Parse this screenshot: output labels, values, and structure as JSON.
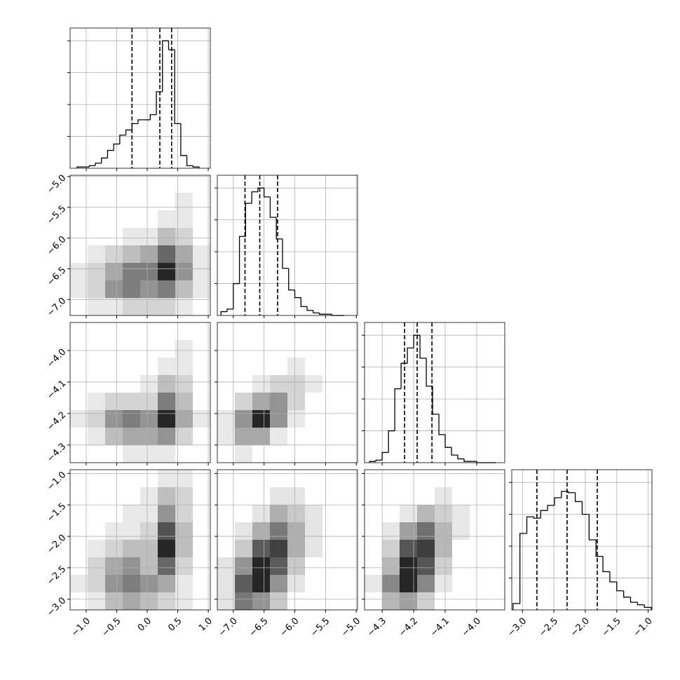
{
  "chart_data": {
    "type": "corner",
    "grid": true,
    "line_color": "#000000",
    "hist_ylim": [
      0,
      110
    ],
    "hist_yticks": [
      25,
      50,
      75,
      100
    ],
    "parameters": [
      {
        "lim": [
          -1.264,
          1.034
        ],
        "ticks": [
          {
            "value": -1.0,
            "label": "−1.0"
          },
          {
            "value": -0.5,
            "label": "−0.5"
          },
          {
            "value": 0.0,
            "label": "0.0"
          },
          {
            "value": 0.5,
            "label": "0.5"
          },
          {
            "value": 1.0,
            "label": "1.0"
          }
        ],
        "bins": [
          -1.15,
          -1.05,
          -0.95,
          -0.85,
          -0.75,
          -0.65,
          -0.55,
          -0.45,
          -0.35,
          -0.25,
          -0.15,
          -0.05,
          0.05,
          0.15,
          0.25,
          0.35,
          0.45,
          0.55,
          0.65,
          0.75,
          0.85
        ],
        "counts": [
          1,
          1,
          2,
          4,
          8,
          14,
          19,
          26,
          30,
          35,
          38,
          38,
          42,
          60,
          100,
          93,
          35,
          10,
          2,
          1
        ],
        "quantiles": [
          -0.25,
          0.207,
          0.4
        ]
      },
      {
        "lim": [
          -7.26,
          -4.98
        ],
        "ticks": [
          {
            "value": -7.0,
            "label": "−7.0"
          },
          {
            "value": -6.5,
            "label": "−6.5"
          },
          {
            "value": -6.0,
            "label": "−6.0"
          },
          {
            "value": -5.5,
            "label": "−5.5"
          },
          {
            "value": -5.0,
            "label": "−5.0"
          }
        ],
        "bins": [
          -7.2,
          -7.1,
          -7.0,
          -6.9,
          -6.8,
          -6.7,
          -6.6,
          -6.5,
          -6.4,
          -6.3,
          -6.2,
          -6.1,
          -6.0,
          -5.9,
          -5.8,
          -5.7,
          -5.6,
          -5.5,
          -5.4,
          -5.3,
          -5.2
        ],
        "counts": [
          3,
          5,
          25,
          62,
          88,
          97,
          100,
          93,
          77,
          60,
          37,
          20,
          14,
          7,
          4,
          2,
          1,
          1,
          0,
          0
        ],
        "quantiles": [
          -6.81,
          -6.57,
          -6.28
        ]
      },
      {
        "lim": [
          -4.356,
          -3.911
        ],
        "ticks": [
          {
            "value": -4.3,
            "label": "−4.3"
          },
          {
            "value": -4.2,
            "label": "−4.2"
          },
          {
            "value": -4.1,
            "label": "−4.1"
          },
          {
            "value": -4.0,
            "label": "−4.0"
          }
        ],
        "bins": [
          -4.34,
          -4.32,
          -4.3,
          -4.28,
          -4.26,
          -4.24,
          -4.22,
          -4.2,
          -4.18,
          -4.16,
          -4.14,
          -4.12,
          -4.1,
          -4.08,
          -4.06,
          -4.04,
          -4.02,
          -4.0,
          -3.98,
          -3.96,
          -3.94
        ],
        "counts": [
          1,
          2,
          8,
          25,
          58,
          78,
          90,
          100,
          82,
          60,
          38,
          22,
          12,
          6,
          3,
          1,
          1,
          0,
          0,
          0
        ],
        "quantiles": [
          -4.229,
          -4.189,
          -4.142
        ]
      },
      {
        "lim": [
          -3.17,
          -0.94
        ],
        "ticks": [
          {
            "value": -3.0,
            "label": "−3.0"
          },
          {
            "value": -2.5,
            "label": "−2.5"
          },
          {
            "value": -2.0,
            "label": "−2.0"
          },
          {
            "value": -1.5,
            "label": "−1.5"
          },
          {
            "value": -1.0,
            "label": "−1.0"
          }
        ],
        "bins": [
          -3.15,
          -3.04,
          -2.93,
          -2.82,
          -2.71,
          -2.6,
          -2.49,
          -2.38,
          -2.27,
          -2.16,
          -2.05,
          -1.94,
          -1.83,
          -1.72,
          -1.61,
          -1.5,
          -1.39,
          -1.28,
          -1.17,
          -1.06,
          -0.95
        ],
        "counts": [
          5,
          60,
          73,
          72,
          78,
          82,
          88,
          93,
          92,
          85,
          75,
          55,
          42,
          30,
          22,
          15,
          10,
          6,
          4,
          2
        ],
        "quantiles": [
          -2.77,
          -2.29,
          -1.81
        ]
      }
    ],
    "density": [
      [
        [
          0,
          0,
          0,
          0,
          0,
          0,
          0,
          0
        ],
        [
          0,
          0,
          0,
          0,
          0,
          0,
          1,
          0
        ],
        [
          0,
          0,
          0,
          0,
          0,
          1,
          1,
          0
        ],
        [
          0,
          0,
          0,
          1,
          1,
          3,
          2,
          0
        ],
        [
          0,
          1,
          2,
          3,
          4,
          7,
          4,
          1
        ],
        [
          1,
          2,
          4,
          6,
          6,
          10,
          5,
          1
        ],
        [
          1,
          2,
          5,
          6,
          5,
          6,
          3,
          1
        ],
        [
          0,
          1,
          1,
          2,
          2,
          2,
          1,
          0
        ]
      ],
      [
        [
          0,
          0,
          0,
          0,
          0,
          0,
          0,
          0
        ],
        [
          0,
          0,
          0,
          0,
          0,
          0,
          1,
          0
        ],
        [
          0,
          0,
          0,
          0,
          0,
          1,
          1,
          0
        ],
        [
          0,
          0,
          0,
          0,
          1,
          3,
          2,
          0
        ],
        [
          0,
          1,
          2,
          2,
          2,
          6,
          3,
          0
        ],
        [
          1,
          2,
          5,
          6,
          5,
          10,
          4,
          1
        ],
        [
          0,
          1,
          3,
          4,
          4,
          5,
          2,
          0
        ],
        [
          0,
          0,
          0,
          1,
          1,
          1,
          0,
          0
        ]
      ],
      [
        [
          0,
          0,
          0,
          0,
          0,
          0,
          0,
          0
        ],
        [
          0,
          0,
          0,
          0,
          0,
          0,
          0,
          0
        ],
        [
          0,
          0,
          0,
          0,
          1,
          0,
          0,
          0
        ],
        [
          0,
          0,
          1,
          2,
          2,
          1,
          0,
          0
        ],
        [
          0,
          2,
          4,
          5,
          2,
          0,
          0,
          0
        ],
        [
          1,
          5,
          10,
          5,
          1,
          0,
          0,
          0
        ],
        [
          1,
          4,
          4,
          1,
          0,
          0,
          0,
          0
        ],
        [
          0,
          1,
          0,
          0,
          0,
          0,
          0,
          0
        ]
      ],
      [
        [
          0,
          0,
          0,
          0,
          0,
          1,
          1,
          0
        ],
        [
          0,
          0,
          0,
          0,
          1,
          3,
          2,
          0
        ],
        [
          0,
          0,
          0,
          1,
          1,
          5,
          2,
          0
        ],
        [
          0,
          0,
          1,
          1,
          2,
          8,
          3,
          0
        ],
        [
          0,
          1,
          2,
          3,
          3,
          10,
          3,
          0
        ],
        [
          0,
          2,
          4,
          5,
          3,
          7,
          2,
          0
        ],
        [
          1,
          2,
          5,
          6,
          5,
          4,
          1,
          0
        ],
        [
          0,
          1,
          3,
          4,
          3,
          2,
          1,
          0
        ]
      ],
      [
        [
          0,
          0,
          0,
          0,
          0,
          0,
          0,
          0
        ],
        [
          0,
          0,
          0,
          1,
          1,
          0,
          0,
          0
        ],
        [
          0,
          0,
          1,
          3,
          2,
          1,
          0,
          0
        ],
        [
          0,
          1,
          3,
          5,
          3,
          1,
          0,
          0
        ],
        [
          0,
          2,
          6,
          7,
          3,
          1,
          0,
          0
        ],
        [
          1,
          4,
          8,
          6,
          2,
          0,
          0,
          0
        ],
        [
          1,
          6,
          8,
          4,
          1,
          0,
          0,
          0
        ],
        [
          1,
          5,
          4,
          2,
          0,
          0,
          0,
          0
        ]
      ],
      [
        [
          0,
          0,
          0,
          0,
          0,
          0,
          0,
          0
        ],
        [
          0,
          0,
          0,
          0,
          1,
          0,
          0,
          0
        ],
        [
          0,
          0,
          1,
          3,
          2,
          1,
          0,
          0
        ],
        [
          0,
          1,
          4,
          6,
          3,
          1,
          0,
          0
        ],
        [
          0,
          2,
          7,
          8,
          3,
          0,
          0,
          0
        ],
        [
          0,
          3,
          9,
          7,
          2,
          0,
          0,
          0
        ],
        [
          1,
          5,
          9,
          5,
          1,
          0,
          0,
          0
        ],
        [
          0,
          3,
          4,
          2,
          0,
          0,
          0,
          0
        ]
      ]
    ]
  }
}
